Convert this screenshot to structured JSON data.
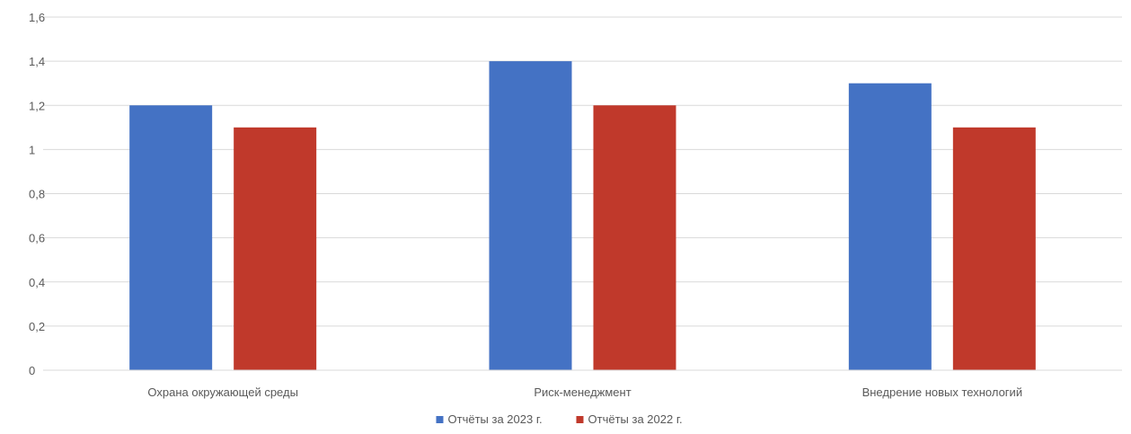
{
  "chart_data": {
    "type": "bar",
    "categories": [
      "Охрана окружающей среды",
      "Риск-менеджмент",
      "Внедрение новых технологий"
    ],
    "series": [
      {
        "name": "Отчёты за 2023 г.",
        "values": [
          1.2,
          1.4,
          1.3
        ],
        "color": "#4472C4"
      },
      {
        "name": "Отчёты за 2022 г.",
        "values": [
          1.1,
          1.2,
          1.1
        ],
        "color": "#C0392B"
      }
    ],
    "yticks": [
      "0",
      "0,2",
      "0,4",
      "0,6",
      "0,8",
      "1",
      "1,2",
      "1,4",
      "1,6"
    ],
    "ylim": [
      0,
      1.6
    ],
    "grid": true,
    "legend_position": "bottom",
    "gridline_color": "#D9D9D9",
    "text_color": "#595959"
  }
}
